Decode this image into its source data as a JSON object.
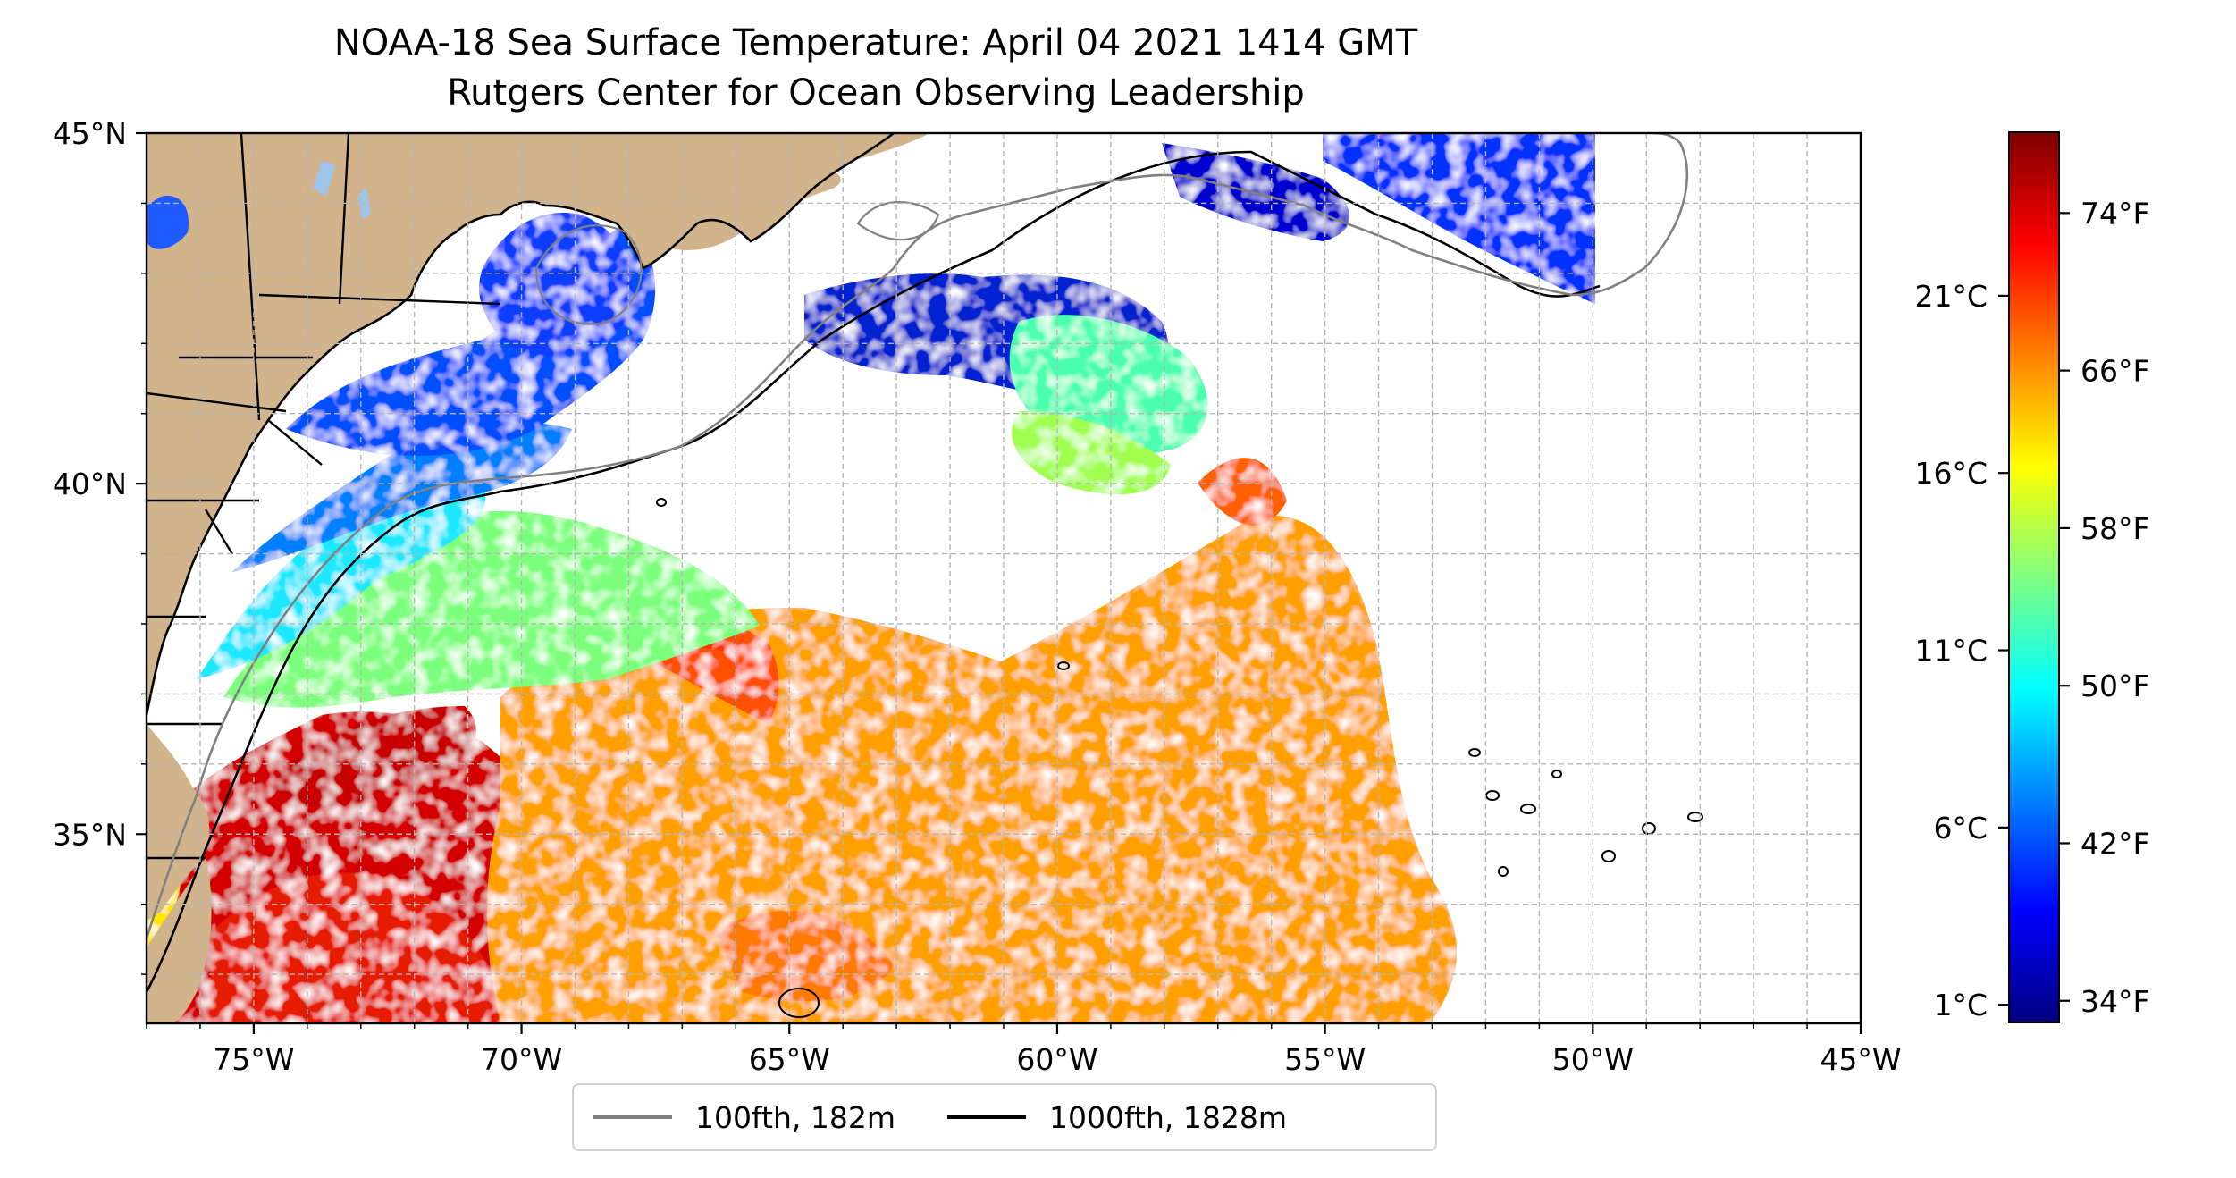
{
  "title": {
    "line1": "NOAA-18 Sea Surface Temperature: April 04 2021 1414 GMT",
    "line2": "Rutgers Center for Ocean Observing Leadership"
  },
  "map": {
    "lon_range": [
      -77,
      -45
    ],
    "lat_range": [
      32.3,
      45
    ],
    "lon_ticks": [
      {
        "lon": -75,
        "label": "75°W"
      },
      {
        "lon": -70,
        "label": "70°W"
      },
      {
        "lon": -65,
        "label": "65°W"
      },
      {
        "lon": -60,
        "label": "60°W"
      },
      {
        "lon": -55,
        "label": "55°W"
      },
      {
        "lon": -50,
        "label": "50°W"
      },
      {
        "lon": -45,
        "label": "45°W"
      }
    ],
    "lat_ticks": [
      {
        "lat": 45,
        "label": "45°N"
      },
      {
        "lat": 40,
        "label": "40°N"
      },
      {
        "lat": 35,
        "label": "35°N"
      }
    ],
    "grid": "dashed",
    "colors": {
      "land": "#d2b48c",
      "lakes": "#9ec5e8",
      "grid": "#b5b5b5",
      "coast": "#000000",
      "contour_100fth": "#808080",
      "contour_1000fth": "#000000"
    }
  },
  "colorbar": {
    "colormap": "jet",
    "fahrenheit_ticks": [
      {
        "value": 74,
        "label": "74°F"
      },
      {
        "value": 66,
        "label": "66°F"
      },
      {
        "value": 58,
        "label": "58°F"
      },
      {
        "value": 50,
        "label": "50°F"
      },
      {
        "value": 42,
        "label": "42°F"
      },
      {
        "value": 34,
        "label": "34°F"
      }
    ],
    "celsius_ticks": [
      {
        "value": 21,
        "label": "21°C"
      },
      {
        "value": 16,
        "label": "16°C"
      },
      {
        "value": 11,
        "label": "11°C"
      },
      {
        "value": 6,
        "label": "6°C"
      },
      {
        "value": 1,
        "label": "1°C"
      }
    ],
    "range_f": [
      32.9,
      78.1
    ]
  },
  "legend": {
    "items": [
      {
        "label": "100fth, 182m",
        "color": "#808080"
      },
      {
        "label": "1000fth, 1828m",
        "color": "#000000"
      }
    ]
  }
}
